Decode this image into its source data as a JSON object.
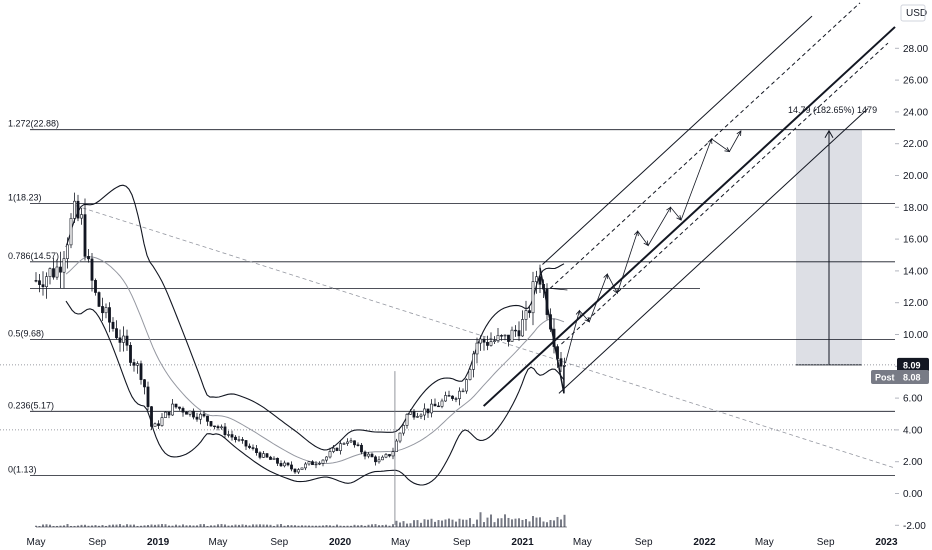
{
  "chart_data": {
    "type": "candlestick",
    "currency": "USD",
    "ylim": [
      -2.5,
      30.5
    ],
    "y_ticks": [
      "28.00",
      "26.00",
      "24.00",
      "22.00",
      "20.00",
      "18.00",
      "16.00",
      "14.00",
      "12.00",
      "10.00",
      "8.00",
      "6.00",
      "4.00",
      "2.00",
      "0.00",
      "-2.00"
    ],
    "x_ticks": [
      "May",
      "Sep",
      "2019",
      "May",
      "Sep",
      "2020",
      "May",
      "Sep",
      "2021",
      "May",
      "Sep",
      "2022",
      "May",
      "Sep",
      "2023"
    ],
    "fib_levels": [
      {
        "label": "1.272(22.88)",
        "value": 22.88
      },
      {
        "label": "1(18.23)",
        "value": 18.23
      },
      {
        "label": "0.786(14.57)",
        "value": 14.57
      },
      {
        "label": "0.5(9.68)",
        "value": 9.68
      },
      {
        "label": "0.236(5.17)",
        "value": 5.17
      },
      {
        "label": "0(1.13)",
        "value": 1.13
      }
    ],
    "extra_level": 12.9,
    "dotted_levels": [
      8.09,
      4.0
    ],
    "last_price": {
      "label": "8.09",
      "value": 8.09
    },
    "post_price": {
      "prefix": "Post",
      "label": "8.08",
      "value": 8.08
    },
    "measure": {
      "label": "14.79 (182.65%) 1479",
      "from": 8.09,
      "to": 22.88
    },
    "colors": {
      "candle": "#131722",
      "grid": "#e0e3eb",
      "tag": "#131722",
      "measure": "#d1d4dc",
      "dashed": "#9598a1",
      "ma": "#9598a1"
    },
    "price_path": [
      [
        "2018-05-01",
        13.4
      ],
      [
        "2018-06-15",
        14.2
      ],
      [
        "2018-07-15",
        17.5
      ],
      [
        "2018-08-01",
        17.0
      ],
      [
        "2018-08-15",
        14.0
      ],
      [
        "2018-09-01",
        12.0
      ],
      [
        "2018-10-01",
        10.5
      ],
      [
        "2018-11-01",
        9.0
      ],
      [
        "2018-12-01",
        7.4
      ],
      [
        "2018-12-20",
        4.0
      ],
      [
        "2019-02-01",
        5.5
      ],
      [
        "2019-04-01",
        4.8
      ],
      [
        "2019-06-01",
        3.5
      ],
      [
        "2019-08-01",
        2.3
      ],
      [
        "2019-10-01",
        1.5
      ],
      [
        "2019-12-01",
        2.2
      ],
      [
        "2020-01-15",
        3.4
      ],
      [
        "2020-02-20",
        2.5
      ],
      [
        "2020-03-20",
        2.0
      ],
      [
        "2020-04-15",
        2.6
      ],
      [
        "2020-05-15",
        5.0
      ],
      [
        "2020-07-01",
        5.3
      ],
      [
        "2020-09-01",
        6.5
      ],
      [
        "2020-10-01",
        9.5
      ],
      [
        "2020-12-01",
        9.7
      ],
      [
        "2021-01-10",
        11.0
      ],
      [
        "2021-02-01",
        14.2
      ],
      [
        "2021-02-25",
        11.0
      ],
      [
        "2021-03-15",
        8.3
      ],
      [
        "2021-03-31",
        8.09
      ]
    ]
  }
}
